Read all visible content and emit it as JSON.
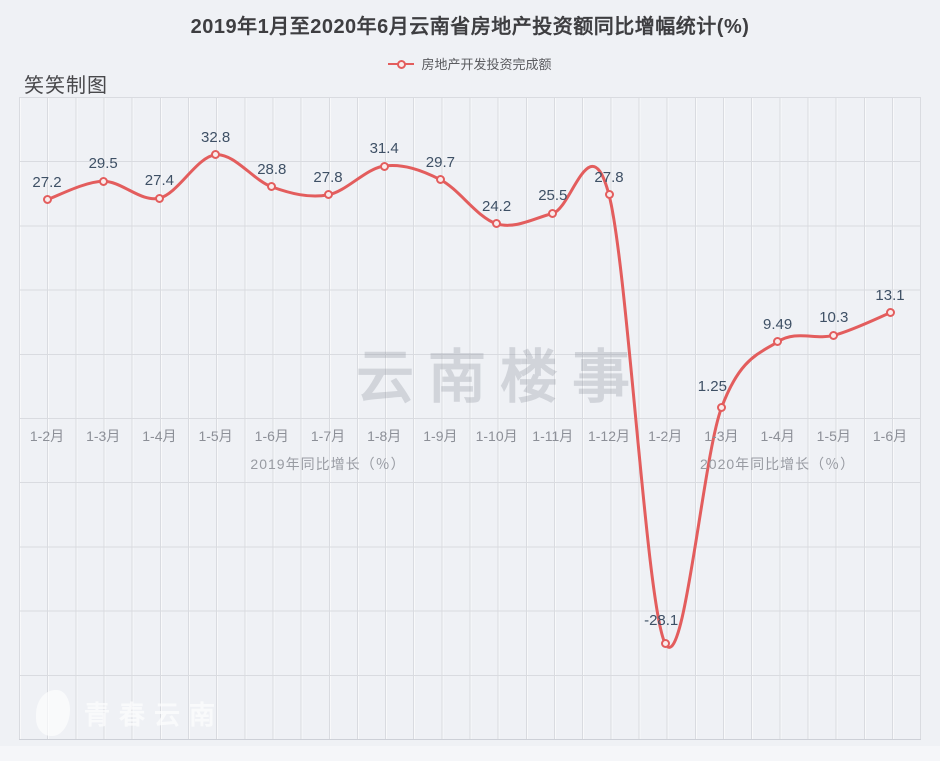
{
  "header": {
    "title": "2019年1月至2020年6月云南省房地产投资额同比增幅统计(%)",
    "credit": "笑笑制图"
  },
  "legend": {
    "label": "房地产开发投资完成额"
  },
  "watermarks": {
    "center_text": "云南楼事",
    "corner_logo_text": "青春云南"
  },
  "colors": {
    "line": "#e35d5d",
    "marker_fill": "#f9ecec",
    "data_label": "#3e5065",
    "background": "#eff1f5",
    "gridline": "#d9dbe0"
  },
  "chart_data": {
    "type": "line",
    "title": "2019年1月至2020年6月云南省房地产投资额同比增幅统计(%)",
    "categories": [
      "1-2月",
      "1-3月",
      "1-4月",
      "1-5月",
      "1-6月",
      "1-7月",
      "1-8月",
      "1-9月",
      "1-10月",
      "1-11月",
      "1-12月",
      "1-2月",
      "1-3月",
      "1-4月",
      "1-5月",
      "1-6月"
    ],
    "series": [
      {
        "name": "房地产开发投资完成额",
        "values": [
          27.2,
          29.5,
          27.4,
          32.8,
          28.8,
          27.8,
          31.4,
          29.7,
          24.2,
          25.5,
          27.8,
          -28.1,
          1.25,
          9.49,
          10.3,
          13.1
        ]
      }
    ],
    "group_labels": [
      "2019年同比增长（％）",
      "2020年同比增长（％）"
    ],
    "group_spans": [
      [
        0,
        10
      ],
      [
        11,
        15
      ]
    ],
    "xlabel": "",
    "ylabel": "",
    "ylim": [
      -40,
      40
    ],
    "grid": true,
    "legend_position": "top",
    "data_labels_shown": true,
    "label_offsets": {
      "11": [
        -4,
        -6
      ],
      "12": [
        -9,
        -4
      ]
    }
  }
}
